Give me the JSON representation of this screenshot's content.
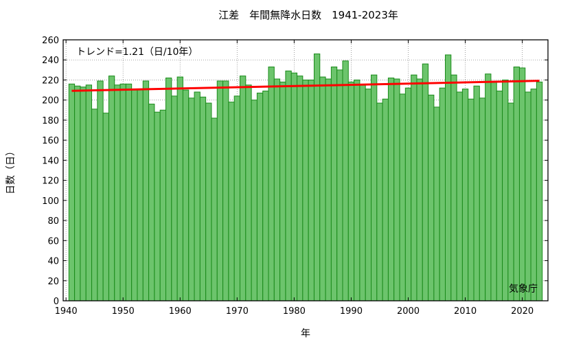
{
  "chart_data": {
    "type": "bar",
    "title": "江差　年間無降水日数　1941-2023年",
    "xlabel": "年",
    "ylabel": "日数（日）",
    "ylim": [
      0,
      260
    ],
    "xlim": [
      1939.5,
      2024.5
    ],
    "yticks": [
      0,
      20,
      40,
      60,
      80,
      100,
      120,
      140,
      160,
      180,
      200,
      220,
      240,
      260
    ],
    "xticks": [
      1940,
      1950,
      1960,
      1970,
      1980,
      1990,
      2000,
      2010,
      2020
    ],
    "grid": true,
    "trend_label": "トレンド=1.21（日/10年）",
    "source": "気象庁",
    "trend": {
      "start_year": 1941,
      "start_value": 209.2,
      "end_year": 2023,
      "end_value": 219.2,
      "color": "#ff0000"
    },
    "bar_color": "#6cc46c",
    "bar_edge_color": "#1a8a1a",
    "x": [
      1941,
      1942,
      1943,
      1944,
      1945,
      1946,
      1947,
      1948,
      1949,
      1950,
      1951,
      1952,
      1953,
      1954,
      1955,
      1956,
      1957,
      1958,
      1959,
      1960,
      1961,
      1962,
      1963,
      1964,
      1965,
      1966,
      1967,
      1968,
      1969,
      1970,
      1971,
      1972,
      1973,
      1974,
      1975,
      1976,
      1977,
      1978,
      1979,
      1980,
      1981,
      1982,
      1983,
      1984,
      1985,
      1986,
      1987,
      1988,
      1989,
      1990,
      1991,
      1992,
      1993,
      1994,
      1995,
      1996,
      1997,
      1998,
      1999,
      2000,
      2001,
      2002,
      2003,
      2004,
      2005,
      2006,
      2007,
      2008,
      2009,
      2010,
      2011,
      2012,
      2013,
      2014,
      2015,
      2016,
      2017,
      2018,
      2019,
      2020,
      2021,
      2022,
      2023
    ],
    "values": [
      216,
      214,
      213,
      215,
      191,
      219,
      187,
      224,
      215,
      216,
      216,
      210,
      210,
      219,
      196,
      188,
      190,
      222,
      204,
      223,
      210,
      202,
      208,
      203,
      197,
      182,
      219,
      219,
      198,
      204,
      224,
      215,
      200,
      207,
      209,
      233,
      221,
      218,
      229,
      227,
      224,
      220,
      220,
      246,
      223,
      221,
      233,
      230,
      239,
      218,
      220,
      215,
      211,
      225,
      197,
      201,
      222,
      221,
      206,
      212,
      225,
      221,
      236,
      205,
      193,
      212,
      245,
      225,
      208,
      211,
      201,
      214,
      202,
      226,
      218,
      209,
      220,
      197,
      233,
      232,
      208,
      211,
      218
    ]
  }
}
